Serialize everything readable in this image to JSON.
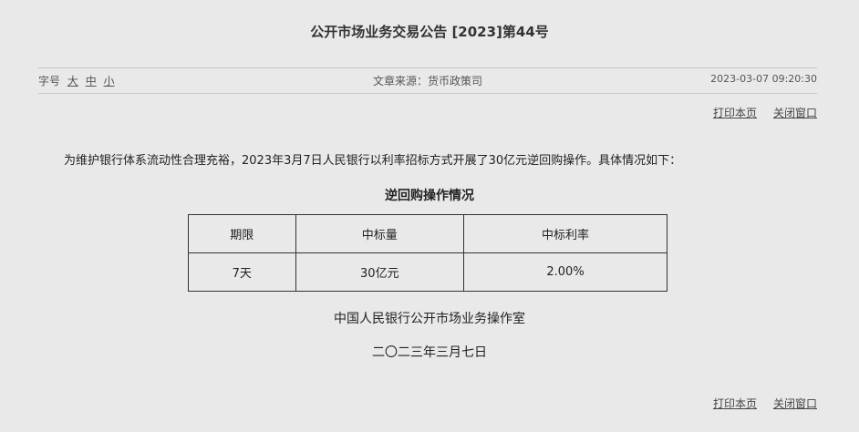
{
  "title": "公开市场业务交易公告 [2023]第44号",
  "meta": {
    "font_size_label": "字号",
    "font_sizes": [
      "大",
      "中",
      "小"
    ],
    "source": "文章来源：货币政策司",
    "datetime": "2023-03-07 09:20:30"
  },
  "links": {
    "print": "打印本页",
    "close": "关闭窗口"
  },
  "body": {
    "paragraph": "为维护银行体系流动性合理充裕，2023年3月7日人民银行以利率招标方式开展了30亿元逆回购操作。具体情况如下：",
    "table_title": "逆回购操作情况",
    "table": {
      "headers": [
        "期限",
        "中标量",
        "中标利率"
      ],
      "rows": [
        [
          "7天",
          "30亿元",
          "2.00%"
        ]
      ]
    },
    "signature": "中国人民银行公开市场业务操作室",
    "date": "二〇二三年三月七日"
  }
}
